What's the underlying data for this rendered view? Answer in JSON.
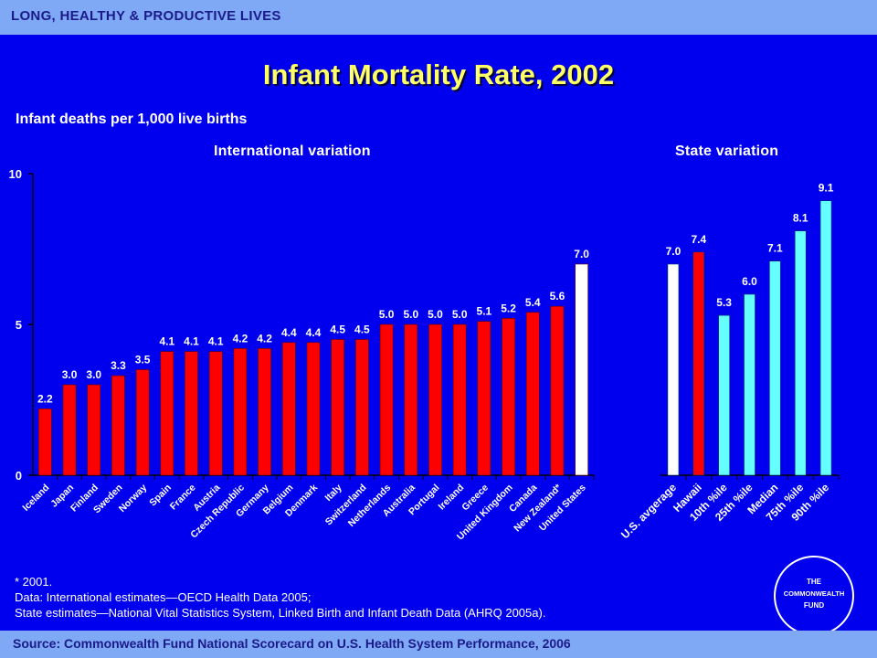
{
  "header": {
    "section": "LONG, HEALTHY & PRODUCTIVE LIVES"
  },
  "title": "Infant Mortality Rate, 2002",
  "subtitle": "Infant deaths per 1,000 live births",
  "panels": {
    "left_title": "International variation",
    "right_title": "State variation"
  },
  "notes": [
    "* 2001.",
    "Data: International estimates—OECD Health Data 2005;",
    "State estimates—National Vital Statistics System, Linked Birth and Infant Death Data (AHRQ 2005a)."
  ],
  "footer": {
    "source": "Source: Commonwealth Fund National Scorecard on U.S. Health System Performance, 2006"
  },
  "logo": {
    "lines": [
      "THE",
      "COMMONWEALTH",
      "FUND"
    ]
  },
  "colors": {
    "background": "#0000EE",
    "bar_red": "#FF0000",
    "bar_white": "#FFFFFF",
    "bar_cyan": "#66FFFF",
    "title": "#FFFF66"
  },
  "chart_data": [
    {
      "type": "bar",
      "title": "International variation",
      "ylim": [
        0,
        10
      ],
      "yticks": [
        0,
        5,
        10
      ],
      "categories": [
        "Iceland",
        "Japan",
        "Finland",
        "Sweden",
        "Norway",
        "Spain",
        "France",
        "Austria",
        "Czech Republic",
        "Germany",
        "Belgium",
        "Denmark",
        "Italy",
        "Switzerland",
        "Netherlands",
        "Australia",
        "Portugal",
        "Ireland",
        "Greece",
        "United Kingdom",
        "Canada",
        "New Zealand*",
        "United States"
      ],
      "values": [
        2.2,
        3.0,
        3.0,
        3.3,
        3.5,
        4.1,
        4.1,
        4.1,
        4.2,
        4.2,
        4.4,
        4.4,
        4.5,
        4.5,
        5.0,
        5.0,
        5.0,
        5.0,
        5.1,
        5.2,
        5.4,
        5.6,
        7.0
      ],
      "labels": [
        "2.2",
        "3.0",
        "3.0",
        "3.3",
        "3.5",
        "4.1",
        "4.1",
        "4.1",
        "4.2",
        "4.2",
        "4.4",
        "4.4",
        "4.5",
        "4.5",
        "5.0",
        "5.0",
        "5.0",
        "5.0",
        "5.1",
        "5.2",
        "5.4",
        "5.6",
        "7.0"
      ],
      "colors": [
        "#FF0000",
        "#FF0000",
        "#FF0000",
        "#FF0000",
        "#FF0000",
        "#FF0000",
        "#FF0000",
        "#FF0000",
        "#FF0000",
        "#FF0000",
        "#FF0000",
        "#FF0000",
        "#FF0000",
        "#FF0000",
        "#FF0000",
        "#FF0000",
        "#FF0000",
        "#FF0000",
        "#FF0000",
        "#FF0000",
        "#FF0000",
        "#FF0000",
        "#FFFFFF"
      ]
    },
    {
      "type": "bar",
      "title": "State variation",
      "ylim": [
        0,
        10
      ],
      "categories": [
        "U.S. avgerage",
        "Hawaii",
        "10th %ile",
        "25th %ile",
        "Median",
        "75th %ile",
        "90th %ile"
      ],
      "values": [
        7.0,
        7.4,
        5.3,
        6.0,
        7.1,
        8.1,
        9.1
      ],
      "labels": [
        "7.0",
        "7.4",
        "5.3",
        "6.0",
        "7.1",
        "8.1",
        "9.1"
      ],
      "colors": [
        "#FFFFFF",
        "#FF0000",
        "#66FFFF",
        "#66FFFF",
        "#66FFFF",
        "#66FFFF",
        "#66FFFF"
      ]
    }
  ]
}
